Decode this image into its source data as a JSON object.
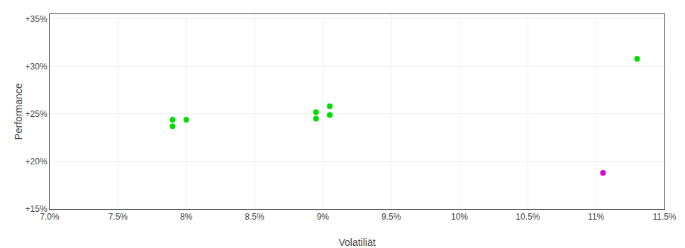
{
  "chart_data": {
    "type": "scatter",
    "xlabel": "Volatiliät",
    "ylabel": "Performance",
    "xlim": [
      0.07,
      0.115
    ],
    "ylim": [
      0.15,
      0.355
    ],
    "xticks": [
      {
        "value": 0.07,
        "label": "7.0%"
      },
      {
        "value": 0.075,
        "label": "7.5%"
      },
      {
        "value": 0.08,
        "label": "8%"
      },
      {
        "value": 0.085,
        "label": "8.5%"
      },
      {
        "value": 0.09,
        "label": "9%"
      },
      {
        "value": 0.095,
        "label": "9.5%"
      },
      {
        "value": 0.1,
        "label": "10%"
      },
      {
        "value": 0.105,
        "label": "10.5%"
      },
      {
        "value": 0.11,
        "label": "11%"
      },
      {
        "value": 0.115,
        "label": "11.5%"
      }
    ],
    "yticks": [
      {
        "value": 0.15,
        "label": "+15%"
      },
      {
        "value": 0.2,
        "label": "+20%"
      },
      {
        "value": 0.25,
        "label": "+25%"
      },
      {
        "value": 0.3,
        "label": "+30%"
      },
      {
        "value": 0.35,
        "label": "+35%"
      }
    ],
    "grid": true,
    "series": [
      {
        "color": "#00dd00",
        "marker": "circle",
        "x": [
          0.079,
          0.08,
          0.079,
          0.0905,
          0.0895,
          0.0905,
          0.0895,
          0.113
        ],
        "values": [
          0.244,
          0.244,
          0.237,
          0.258,
          0.252,
          0.249,
          0.245,
          0.308
        ]
      },
      {
        "color": "#dd00dd",
        "marker": "circle",
        "x": [
          0.1105
        ],
        "values": [
          0.188
        ]
      }
    ]
  }
}
